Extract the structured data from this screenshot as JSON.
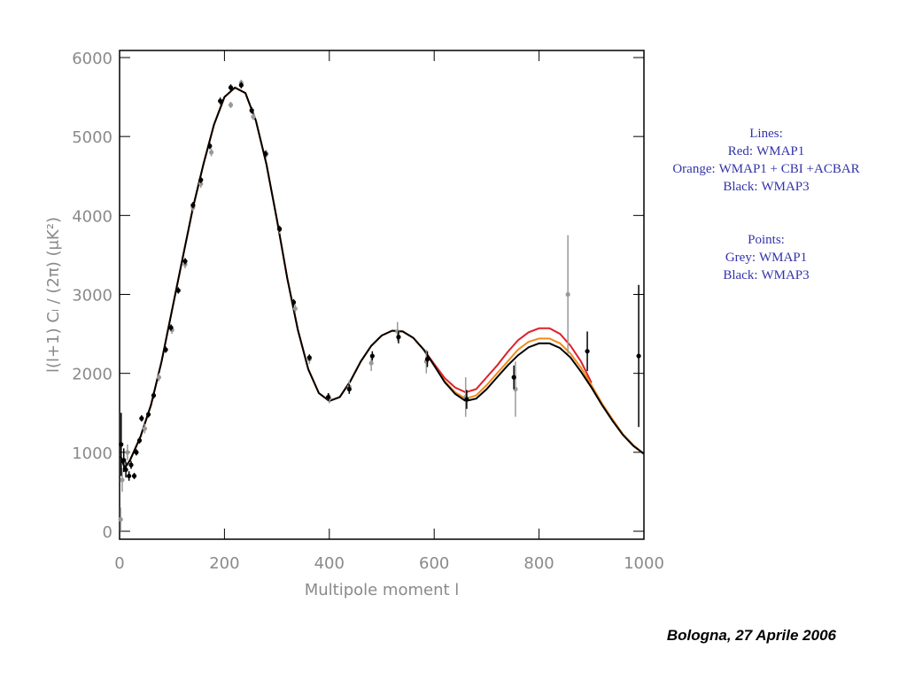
{
  "chart_data": {
    "type": "line",
    "x_label": "Multipole moment l",
    "y_label": "l(l+1) Cₗ / (2π) (μK²)",
    "xlim": [
      0,
      1000
    ],
    "xticks": [
      0,
      200,
      400,
      600,
      800,
      1000
    ],
    "ylim": [
      0,
      6000
    ],
    "yticks": [
      0,
      1000,
      2000,
      3000,
      4000,
      5000,
      6000
    ],
    "x": [
      2,
      10,
      20,
      40,
      60,
      80,
      100,
      120,
      140,
      160,
      180,
      200,
      220,
      240,
      260,
      280,
      300,
      320,
      340,
      360,
      380,
      400,
      420,
      440,
      460,
      480,
      500,
      520,
      540,
      560,
      580,
      600,
      620,
      640,
      660,
      680,
      700,
      720,
      740,
      760,
      780,
      800,
      820,
      840,
      860,
      880,
      900,
      920,
      940,
      960,
      980,
      1000
    ],
    "series": [
      {
        "name": "WMAP1",
        "legend_key": "Red:",
        "color": "#e0202a",
        "values": [
          950,
          800,
          900,
          1200,
          1600,
          2150,
          2800,
          3450,
          4100,
          4650,
          5150,
          5500,
          5620,
          5550,
          5200,
          4650,
          3950,
          3200,
          2550,
          2050,
          1750,
          1650,
          1700,
          1900,
          2150,
          2350,
          2480,
          2540,
          2530,
          2450,
          2300,
          2120,
          1940,
          1820,
          1760,
          1800,
          1950,
          2100,
          2270,
          2420,
          2520,
          2570,
          2570,
          2500,
          2350,
          2150,
          1880,
          null,
          null,
          null,
          null,
          null
        ]
      },
      {
        "name": "WMAP1 + CBI +ACBAR",
        "legend_key": "Orange:",
        "color": "#f08a1c",
        "values": [
          950,
          800,
          900,
          1200,
          1600,
          2150,
          2800,
          3450,
          4100,
          4650,
          5150,
          5500,
          5620,
          5550,
          5200,
          4650,
          3950,
          3200,
          2550,
          2050,
          1750,
          1650,
          1700,
          1900,
          2150,
          2350,
          2480,
          2540,
          2530,
          2450,
          2300,
          2100,
          1900,
          1760,
          1680,
          1720,
          1850,
          2000,
          2150,
          2300,
          2400,
          2440,
          2440,
          2380,
          2250,
          2070,
          1850,
          1620,
          1420,
          1230,
          1090,
          980
        ]
      },
      {
        "name": "WMAP3",
        "legend_key": "Black:",
        "color": "#000000",
        "values": [
          950,
          800,
          900,
          1200,
          1600,
          2150,
          2800,
          3450,
          4100,
          4650,
          5150,
          5500,
          5620,
          5550,
          5200,
          4650,
          3950,
          3200,
          2550,
          2050,
          1750,
          1650,
          1700,
          1900,
          2150,
          2350,
          2480,
          2540,
          2530,
          2450,
          2300,
          2100,
          1890,
          1740,
          1650,
          1680,
          1800,
          1950,
          2100,
          2230,
          2330,
          2380,
          2380,
          2320,
          2200,
          2020,
          1820,
          1600,
          1400,
          1220,
          1080,
          980
        ]
      }
    ],
    "points": [
      {
        "name": "WMAP1",
        "legend_key": "Grey:",
        "color": "#999999",
        "x": [
          2,
          5,
          8,
          15,
          48,
          75,
          100,
          125,
          140,
          155,
          175,
          192,
          212,
          232,
          255,
          280,
          305,
          335,
          362,
          400,
          438,
          480,
          530,
          585,
          660,
          755,
          855
        ],
        "values": [
          150,
          650,
          900,
          1000,
          1300,
          1950,
          2550,
          3380,
          4100,
          4400,
          4800,
          5450,
          5400,
          5680,
          5250,
          4780,
          3820,
          2820,
          2180,
          1680,
          1830,
          2130,
          2530,
          2150,
          1700,
          1800,
          3000
        ],
        "errors": [
          150,
          150,
          120,
          100,
          60,
          50,
          50,
          50,
          50,
          50,
          50,
          50,
          40,
          40,
          40,
          50,
          50,
          50,
          60,
          60,
          80,
          100,
          120,
          150,
          250,
          350,
          750
        ]
      },
      {
        "name": "WMAP3",
        "legend_key": "Black:",
        "color": "#000000",
        "x": [
          3,
          8,
          12,
          18,
          22,
          28,
          32,
          38,
          42,
          55,
          65,
          88,
          98,
          112,
          125,
          140,
          155,
          172,
          192,
          212,
          232,
          252,
          278,
          305,
          332,
          362,
          398,
          438,
          482,
          532,
          587,
          662,
          752,
          892,
          990
        ],
        "values": [
          1100,
          900,
          780,
          700,
          840,
          700,
          1000,
          1150,
          1430,
          1480,
          1720,
          2300,
          2580,
          3050,
          3420,
          4130,
          4450,
          4880,
          5450,
          5620,
          5650,
          5330,
          4780,
          3830,
          2900,
          2200,
          1700,
          1800,
          2220,
          2460,
          2180,
          1670,
          1950,
          2280,
          2220
        ],
        "errors": [
          400,
          150,
          100,
          60,
          50,
          40,
          40,
          40,
          40,
          40,
          40,
          40,
          40,
          40,
          40,
          40,
          40,
          40,
          40,
          40,
          40,
          40,
          40,
          40,
          40,
          40,
          50,
          60,
          60,
          80,
          100,
          120,
          150,
          250,
          900
        ]
      }
    ],
    "legend": {
      "lines_heading": "Lines:",
      "points_heading": "Points:"
    },
    "footer": "Bologna, 27 Aprile 2006"
  }
}
